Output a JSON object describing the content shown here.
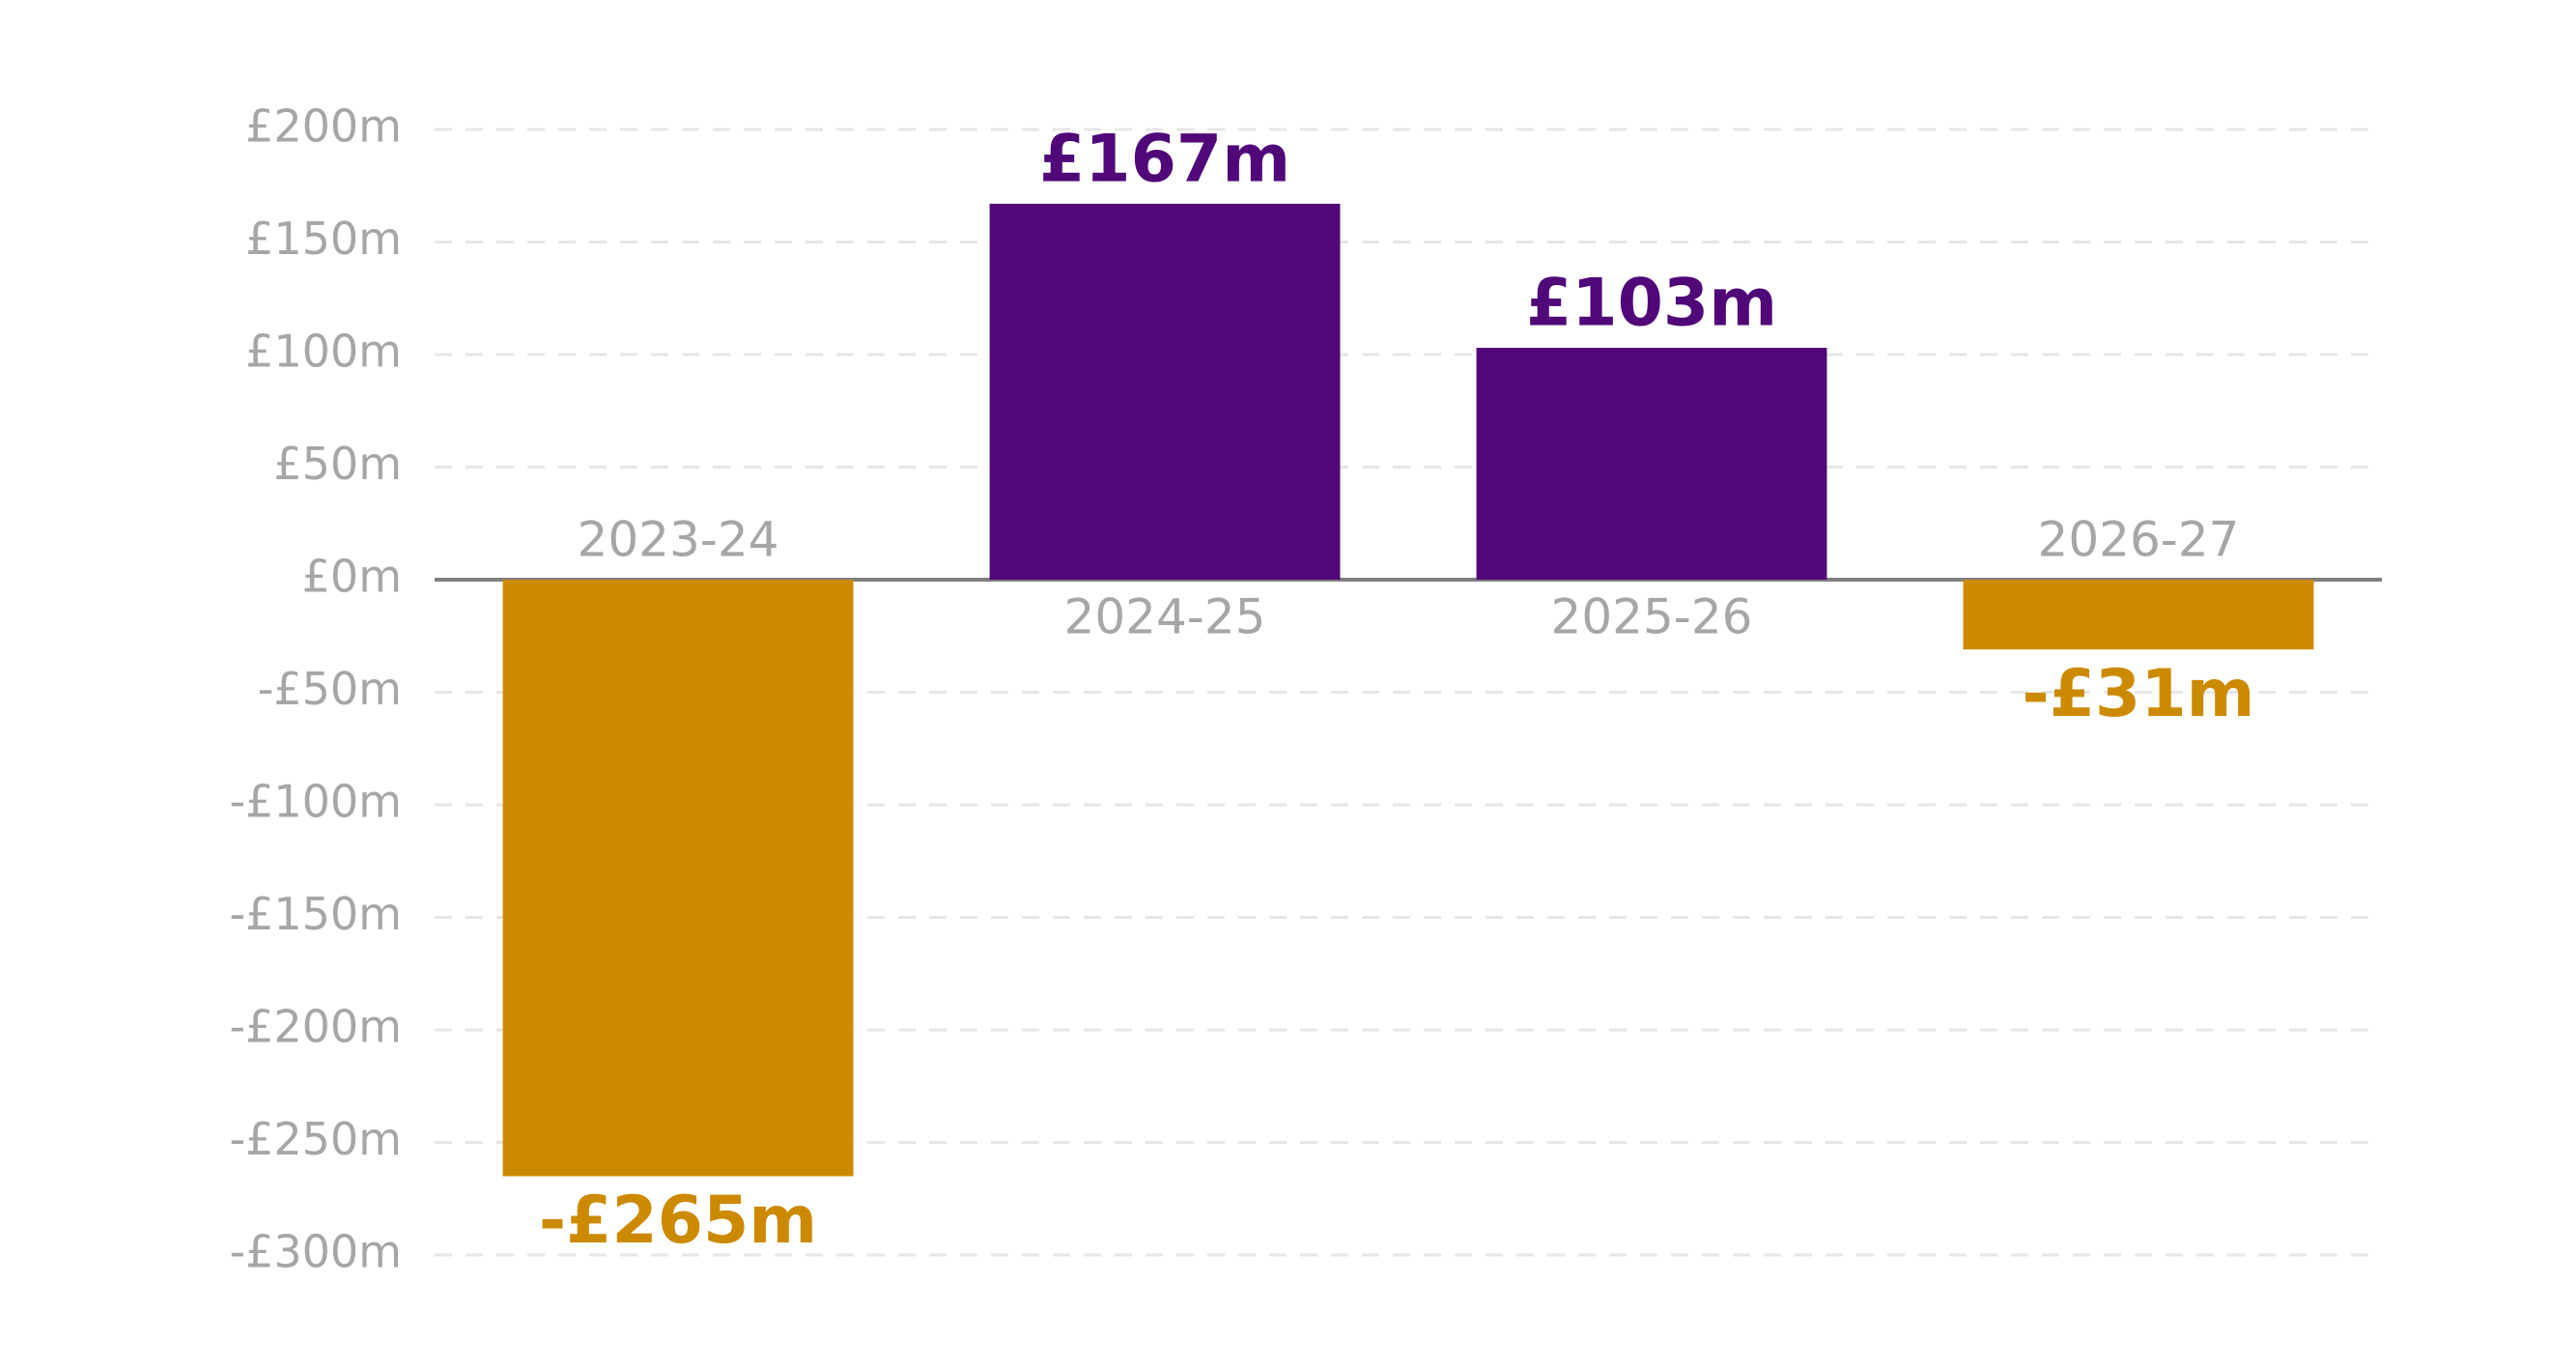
{
  "chart_data": {
    "type": "bar",
    "categories": [
      "2023-24",
      "2024-25",
      "2025-26",
      "2026-27"
    ],
    "values": [
      -265,
      167,
      103,
      -31
    ],
    "value_labels": [
      "-£265m",
      "£167m",
      "£103m",
      "-£31m"
    ],
    "colors": [
      "#cc8a00",
      "#500778",
      "#500778",
      "#cc8a00"
    ],
    "ylim": [
      -300,
      200
    ],
    "yticks": [
      {
        "value": 200,
        "label": "£200m"
      },
      {
        "value": 150,
        "label": "£150m"
      },
      {
        "value": 100,
        "label": "£100m"
      },
      {
        "value": 50,
        "label": "£50m"
      },
      {
        "value": 0,
        "label": "£0m"
      },
      {
        "value": -50,
        "label": "-£50m"
      },
      {
        "value": -100,
        "label": "-£100m"
      },
      {
        "value": -150,
        "label": "-£150m"
      },
      {
        "value": -200,
        "label": "-£200m"
      },
      {
        "value": -250,
        "label": "-£250m"
      },
      {
        "value": -300,
        "label": "-£300m"
      }
    ],
    "grid": true
  }
}
